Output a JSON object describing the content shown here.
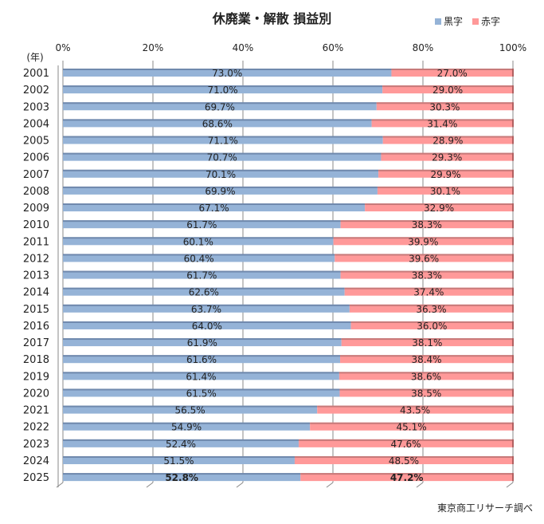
{
  "chart_data": {
    "type": "bar",
    "orientation": "horizontal",
    "stacked": "percent",
    "title": "休廃業・解散 損益別",
    "ylabel": "(年)",
    "xlabel": "",
    "xlim": [
      0,
      100
    ],
    "x_ticks": [
      "0%",
      "20%",
      "40%",
      "60%",
      "80%",
      "100%"
    ],
    "grid": true,
    "legend_position": "top-right",
    "categories": [
      "2001",
      "2002",
      "2003",
      "2004",
      "2005",
      "2006",
      "2007",
      "2008",
      "2009",
      "2010",
      "2011",
      "2012",
      "2013",
      "2014",
      "2015",
      "2016",
      "2017",
      "2018",
      "2019",
      "2020",
      "2021",
      "2022",
      "2023",
      "2024",
      "2025"
    ],
    "series": [
      {
        "name": "黒字",
        "color": "#95b3d7",
        "values": [
          73.0,
          71.0,
          69.7,
          68.6,
          71.1,
          70.7,
          70.1,
          69.9,
          67.1,
          61.7,
          60.1,
          60.4,
          61.7,
          62.6,
          63.7,
          64.0,
          61.9,
          61.6,
          61.4,
          61.5,
          56.5,
          54.9,
          52.4,
          51.5,
          52.8
        ]
      },
      {
        "name": "赤字",
        "color": "#ff9999",
        "values": [
          27.0,
          29.0,
          30.3,
          31.4,
          28.9,
          29.3,
          29.9,
          30.1,
          32.9,
          38.3,
          39.9,
          39.6,
          38.3,
          37.4,
          36.3,
          36.0,
          38.1,
          38.4,
          38.6,
          38.5,
          43.5,
          45.1,
          47.6,
          48.5,
          47.2
        ]
      }
    ],
    "highlighted_category": "2025",
    "source": "東京商工リサーチ調べ"
  }
}
